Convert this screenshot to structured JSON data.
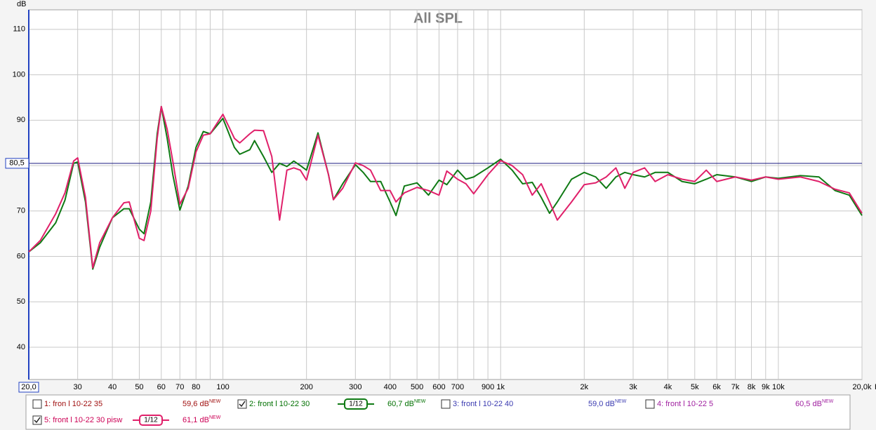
{
  "chart_data": {
    "type": "line",
    "title": "All SPL",
    "ylabel": "dB",
    "xlabel": "Hz",
    "log_x": true,
    "grid": true,
    "x": [
      20,
      22,
      25,
      27,
      29,
      30,
      32,
      34,
      36,
      40,
      44,
      46,
      50,
      52,
      55,
      58,
      60,
      63,
      66,
      70,
      75,
      80,
      85,
      90,
      100,
      110,
      115,
      125,
      130,
      140,
      150,
      160,
      170,
      180,
      190,
      200,
      220,
      240,
      250,
      270,
      300,
      320,
      340,
      370,
      400,
      420,
      450,
      500,
      550,
      600,
      640,
      700,
      750,
      800,
      900,
      1000,
      1100,
      1200,
      1300,
      1400,
      1500,
      1600,
      1800,
      2000,
      2200,
      2400,
      2600,
      2800,
      3000,
      3300,
      3600,
      4000,
      4500,
      5000,
      5500,
      6000,
      7000,
      8000,
      9000,
      10000,
      12000,
      14000,
      16000,
      18000,
      20000
    ],
    "xlim": [
      20,
      20000
    ],
    "xticks": [
      {
        "value": 20,
        "label": "20,0"
      },
      30,
      40,
      50,
      60,
      70,
      80,
      100,
      200,
      300,
      400,
      500,
      600,
      700,
      900,
      {
        "value": 1000,
        "label": "1k"
      },
      {
        "value": 2000,
        "label": "2k"
      },
      {
        "value": 3000,
        "label": "3k"
      },
      {
        "value": 4000,
        "label": "4k"
      },
      {
        "value": 5000,
        "label": "5k"
      },
      {
        "value": 6000,
        "label": "6k"
      },
      {
        "value": 7000,
        "label": "7k"
      },
      {
        "value": 8000,
        "label": "8k"
      },
      {
        "value": 9000,
        "label": "9k"
      },
      {
        "value": 10000,
        "label": "10k"
      },
      {
        "value": 20000,
        "label": "20,0k"
      }
    ],
    "x_minor_ticks": [
      90,
      800
    ],
    "ylim": [
      32.9,
      114.3
    ],
    "yticks": [
      40,
      50,
      60,
      70,
      80,
      90,
      100,
      110
    ],
    "cursor": {
      "value": 80.5,
      "label": "80,5"
    },
    "series": [
      {
        "name": "2: front l 10-22 30",
        "color": "#0f7a14",
        "text_color": "#007000",
        "checked": true,
        "smoothing": "1/12",
        "level": "60,7 dB",
        "level_tag": "NEW",
        "values": [
          61,
          63,
          67.4,
          72.4,
          80.5,
          80.8,
          72,
          57.2,
          62,
          68.5,
          70.5,
          70.5,
          66,
          65,
          72,
          87,
          93,
          86,
          78,
          70.2,
          75.5,
          84,
          87.5,
          87,
          90.4,
          84,
          82.5,
          83.5,
          85.5,
          82,
          78.5,
          80.5,
          79.8,
          81,
          80,
          79,
          87.2,
          78,
          72.5,
          76,
          80.2,
          78.5,
          76.5,
          76.5,
          72,
          69,
          75.5,
          76.2,
          73.5,
          76.8,
          75.8,
          79,
          77,
          77.5,
          79.5,
          81.4,
          79,
          76,
          76.3,
          73,
          69.5,
          72,
          77,
          78.5,
          77.5,
          75,
          77.5,
          78.5,
          78,
          77.5,
          78.5,
          78.5,
          76.5,
          76,
          77,
          78,
          77.5,
          76.5,
          77.5,
          77.2,
          77.8,
          77.5,
          74.5,
          73.5,
          69
        ]
      },
      {
        "name": "5: front l 10-22 30 pisw",
        "color": "#e0206a",
        "text_color": "#cc0055",
        "checked": true,
        "smoothing": "1/12",
        "level": "61,1 dB",
        "level_tag": "NEW",
        "values": [
          61,
          63.5,
          69.4,
          74,
          81,
          81.7,
          73,
          57.5,
          63,
          68.5,
          71.8,
          72,
          64,
          63.5,
          70,
          86,
          93,
          88,
          81,
          71.5,
          75,
          83,
          86.7,
          87,
          91.3,
          86,
          85,
          87,
          87.8,
          87.7,
          82,
          68,
          79,
          79.5,
          79,
          76.8,
          86.7,
          78,
          72.5,
          75,
          80.6,
          80,
          79,
          74.5,
          74.5,
          72,
          74,
          75.2,
          74.5,
          73.5,
          78.8,
          77,
          76,
          73.8,
          78,
          81.1,
          80,
          78,
          73.5,
          76,
          72,
          68,
          72,
          75.8,
          76.2,
          77.5,
          79.5,
          75,
          78.5,
          79.5,
          76.5,
          78,
          77,
          76.5,
          79,
          76.5,
          77.5,
          76.8,
          77.5,
          77,
          77.5,
          76.5,
          74.8,
          74,
          69.5
        ]
      }
    ]
  },
  "legend_panel": {
    "others": [
      {
        "name": "1: fron l 10-22 35",
        "level": "59,6 dB",
        "level_tag": "NEW",
        "text_color": "#a01010",
        "checked": false
      },
      {
        "name": "3: front l 10-22 40",
        "level": "59,0 dB",
        "level_tag": "NEW",
        "text_color": "#3a3ab0",
        "checked": false
      },
      {
        "name": "4: front l 10-22 5",
        "level": "60,5 dB",
        "level_tag": "NEW",
        "text_color": "#a020a0",
        "checked": false
      }
    ]
  }
}
